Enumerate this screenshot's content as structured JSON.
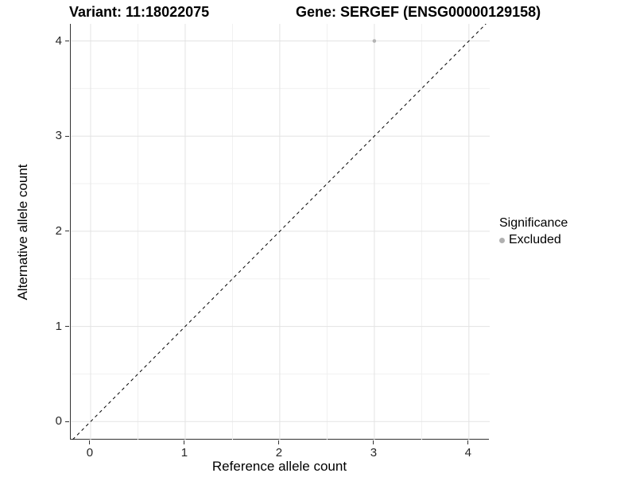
{
  "header": {
    "variant_title": "Variant: 11:18022075",
    "gene_title": "Gene: SERGEF (ENSG00000129158)"
  },
  "legend": {
    "title": "Significance",
    "items": [
      {
        "label": "Excluded",
        "color": "#b0b0b0"
      }
    ]
  },
  "chart_data": {
    "type": "scatter",
    "title_left": "Variant: 11:18022075",
    "title_right": "Gene: SERGEF (ENSG00000129158)",
    "xlabel": "Reference allele count",
    "ylabel": "Alternative allele count",
    "xlim": [
      -0.21,
      4.22
    ],
    "ylim": [
      -0.19,
      4.18
    ],
    "x_ticks": [
      0,
      1,
      2,
      3,
      4
    ],
    "y_ticks": [
      0,
      1,
      2,
      3,
      4
    ],
    "grid": {
      "major": true,
      "minor": true,
      "major_color": "#e3e3e3",
      "minor_color": "#f0f0f0"
    },
    "axis_line_color": "#333333",
    "identity_line": {
      "slope": 1,
      "intercept": 0,
      "style": "dashed",
      "dash": "4 4",
      "color": "#000000",
      "width": 1
    },
    "series": [
      {
        "name": "Excluded",
        "color": "#b4b4b4",
        "point_radius": 2.3,
        "points": [
          {
            "x": 3,
            "y": 4
          }
        ]
      }
    ],
    "legend_position": "right"
  }
}
